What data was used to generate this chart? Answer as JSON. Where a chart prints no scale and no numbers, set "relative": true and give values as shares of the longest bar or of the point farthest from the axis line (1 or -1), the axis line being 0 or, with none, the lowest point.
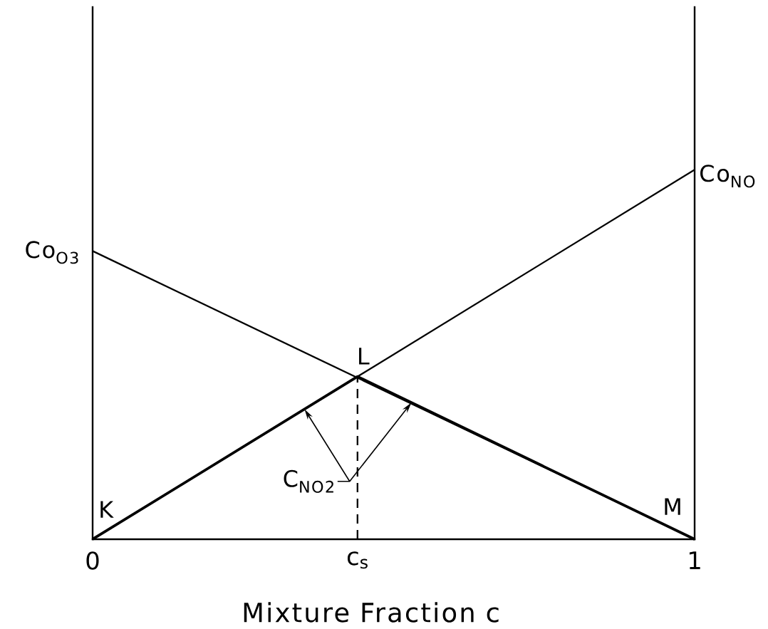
{
  "chart_data": {
    "type": "line",
    "xlabel": "Mixture Fraction c",
    "xlim": [
      0,
      1
    ],
    "xticks": [
      0,
      {
        "value": 0.44,
        "label": "c$_{s}$"
      },
      1
    ],
    "relative": true,
    "marker": "none",
    "series": [
      {
        "name": "Co$_{O3}$",
        "color": "#000000",
        "x": [
          0,
          1
        ],
        "values": [
          0.78,
          0
        ]
      },
      {
        "name": "Co$_{NO}$",
        "color": "#000000",
        "x": [
          0,
          1
        ],
        "values": [
          0,
          1
        ]
      },
      {
        "name": "C$_{NO2}$",
        "color": "#000000",
        "x": [
          0,
          0.44,
          1
        ],
        "values": [
          0,
          0.44,
          0
        ]
      },
      {
        "color": "#000000",
        "x": [
          0.44,
          0.44
        ],
        "values": [
          0,
          0.44
        ],
        "line_style": "dashed"
      }
    ],
    "annotations": [
      {
        "text": "K",
        "x": 0,
        "y": 0
      },
      {
        "text": "L",
        "x": 0.44,
        "y": 0.44
      },
      {
        "text": "M",
        "x": 1,
        "y": 0
      }
    ]
  }
}
